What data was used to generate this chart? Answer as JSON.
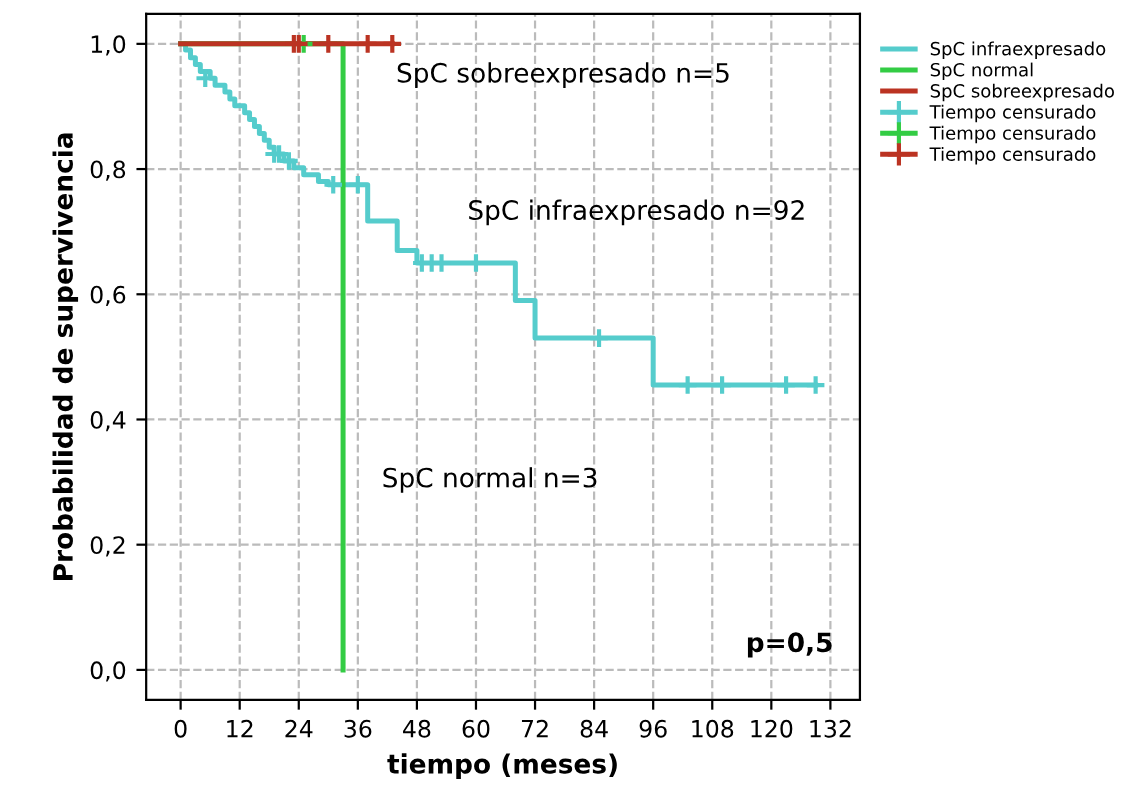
{
  "chart_data": {
    "type": "step",
    "xlabel": "tiempo (meses)",
    "ylabel": "Probabilidad de supervivencia",
    "xlim": [
      -7,
      138
    ],
    "ylim": [
      -0.048,
      1.048
    ],
    "xticks": [
      0,
      12,
      24,
      36,
      48,
      60,
      72,
      84,
      96,
      108,
      120,
      132
    ],
    "yticks": [
      {
        "value": 0.0,
        "label": "0,0"
      },
      {
        "value": 0.2,
        "label": "0,2"
      },
      {
        "value": 0.4,
        "label": "0,4"
      },
      {
        "value": 0.6,
        "label": "0,6"
      },
      {
        "value": 0.8,
        "label": "0,8"
      },
      {
        "value": 1.0,
        "label": "1,0"
      }
    ],
    "grid": true,
    "legend": "top right",
    "series": [
      {
        "name": "SpC infraexpresado",
        "color": "#55cccc",
        "x": [
          0,
          1,
          2,
          3,
          4,
          6,
          7,
          9,
          10,
          11,
          13,
          14,
          15,
          16,
          17,
          18,
          19,
          21,
          23,
          25,
          28,
          30,
          38,
          44,
          48,
          68,
          72,
          96,
          129
        ],
        "values": [
          1.0,
          0.99,
          0.978,
          0.967,
          0.956,
          0.945,
          0.934,
          0.923,
          0.912,
          0.901,
          0.89,
          0.879,
          0.868,
          0.857,
          0.846,
          0.835,
          0.824,
          0.813,
          0.802,
          0.791,
          0.78,
          0.775,
          0.717,
          0.67,
          0.65,
          0.59,
          0.53,
          0.455,
          0.455
        ]
      },
      {
        "name": "SpC normal",
        "color": "#33cc44",
        "x": [
          0,
          33
        ],
        "values": [
          1.0,
          0.0
        ]
      },
      {
        "name": "SpC sobreexpresado",
        "color": "#bb3322",
        "x": [
          0,
          43
        ],
        "values": [
          1.0,
          1.0
        ]
      },
      {
        "type": "scatter",
        "name": "Tiempo censurado",
        "color": "#55cccc",
        "marker": "cross",
        "x": [
          5,
          19,
          20,
          22,
          31,
          36,
          49,
          51,
          53,
          60,
          85,
          103,
          110,
          123,
          129
        ],
        "values": [
          0.945,
          0.824,
          0.824,
          0.813,
          0.775,
          0.775,
          0.65,
          0.65,
          0.65,
          0.65,
          0.53,
          0.455,
          0.455,
          0.455,
          0.455
        ]
      },
      {
        "type": "scatter",
        "name": "Tiempo censurado",
        "color": "#33cc44",
        "marker": "cross",
        "x": [
          25
        ],
        "values": [
          1.0
        ]
      },
      {
        "type": "scatter",
        "name": "Tiempo censurado",
        "color": "#bb3322",
        "marker": "cross",
        "x": [
          23,
          24,
          30,
          38,
          43
        ],
        "values": [
          1.0,
          1.0,
          1.0,
          1.0,
          1.0
        ]
      }
    ],
    "annotations": [
      "SpC sobreexpresado n=5",
      "SpC infraexpresado n=92",
      "SpC normal n=3",
      "p=0,5"
    ]
  }
}
